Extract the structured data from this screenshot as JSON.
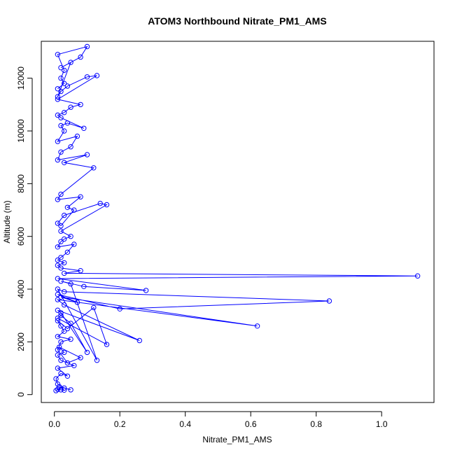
{
  "colors": {
    "series": "#0000ff",
    "axis": "#000000",
    "background": "#ffffff"
  },
  "chart_data": {
    "type": "line",
    "title": "ATOM3 Northbound Nitrate_PM1_AMS",
    "xlabel": "Nitrate_PM1_AMS",
    "ylabel": "Altitude (m)",
    "xlim": [
      -0.04,
      1.16
    ],
    "ylim": [
      -300,
      13400
    ],
    "xticks": [
      0,
      0.2,
      0.4,
      0.6,
      0.8,
      1.0
    ],
    "xtick_labels": [
      "0.0",
      "0.2",
      "0.4",
      "0.6",
      "0.8",
      "1.0"
    ],
    "yticks": [
      0,
      2000,
      4000,
      6000,
      8000,
      10000,
      12000
    ],
    "ytick_labels": [
      "0",
      "2000",
      "4000",
      "6000",
      "8000",
      "10000",
      "12000"
    ],
    "grid": false,
    "marker": "open-circle",
    "series": [
      {
        "x": [
          0.005,
          0.01,
          0.02,
          0.03,
          0.015,
          0.05,
          0.03,
          0.01,
          0.005,
          0.02,
          0.04,
          0.01,
          0.06,
          0.02,
          0.01,
          0.03,
          0.015,
          0.08,
          0.04,
          0.01,
          0.02,
          0.05,
          0.01,
          0.03,
          0.02,
          0.01,
          0.04,
          0.12,
          0.16,
          0.01,
          0.02,
          0.05,
          0.1,
          0.02,
          0.01,
          0.26,
          0.03,
          0.01,
          0.62,
          0.02,
          0.07,
          0.01,
          0.2,
          0.84,
          0.03,
          0.01,
          0.13,
          0.05,
          0.02,
          0.09,
          0.28,
          0.01,
          1.11,
          0.03,
          0.08,
          0.02,
          0.01,
          0.03,
          0.01,
          0.02,
          0.04,
          0.06,
          0.01,
          0.02,
          0.03,
          0.05,
          0.02,
          0.16,
          0.14,
          0.03,
          0.01,
          0.02,
          0.06,
          0.04,
          0.08,
          0.01,
          0.02,
          0.12,
          0.03,
          0.1,
          0.01,
          0.02,
          0.05,
          0.07,
          0.01,
          0.03,
          0.02,
          0.04,
          0.09,
          0.02,
          0.01,
          0.03,
          0.05,
          0.08,
          0.01,
          0.13,
          0.1,
          0.04,
          0.02,
          0.01,
          0.05,
          0.02,
          0.08,
          0.1,
          0.01,
          0.03,
          0.02,
          0.03,
          0.01
        ],
        "y": [
          150,
          200,
          180,
          170,
          300,
          180,
          250,
          400,
          600,
          800,
          700,
          1000,
          1100,
          1300,
          1500,
          1600,
          1800,
          1400,
          1200,
          1700,
          2000,
          2100,
          2200,
          2400,
          2600,
          2800,
          2500,
          3300,
          1900,
          2900,
          3000,
          2700,
          1600,
          3100,
          3200,
          2050,
          3400,
          3600,
          2600,
          3700,
          3500,
          3800,
          3250,
          3550,
          3900,
          4000,
          1300,
          4200,
          4300,
          4100,
          3950,
          4400,
          4500,
          4600,
          4700,
          4800,
          4900,
          5000,
          5100,
          5200,
          5400,
          5700,
          5600,
          5800,
          5900,
          6000,
          6200,
          7200,
          7250,
          6800,
          6500,
          6400,
          7000,
          7100,
          7500,
          7400,
          7600,
          8600,
          8800,
          9100,
          8900,
          9200,
          9400,
          9800,
          9600,
          10000,
          10200,
          10300,
          10100,
          10500,
          10600,
          10700,
          10900,
          11000,
          11200,
          12100,
          12050,
          11700,
          11500,
          11300,
          12600,
          12400,
          12800,
          13200,
          12900,
          12300,
          12000,
          11800,
          11600
        ]
      }
    ]
  }
}
